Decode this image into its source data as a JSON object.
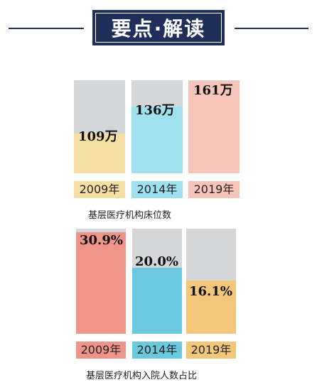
{
  "header": {
    "title": "要点·解读"
  },
  "colors": {
    "navy": "#1f2f5a",
    "gray": "#d4d6d8",
    "yellow": "#f6dfa2",
    "cyan": "#9fe1ef",
    "pink": "#f7c4b9",
    "salmon": "#ef9489",
    "blue": "#6cc8de",
    "orange": "#f2c77c"
  },
  "chart_data": [
    {
      "type": "bar",
      "title": "基层医疗机构床位数",
      "categories": [
        "2009年",
        "2014年",
        "2019年"
      ],
      "values": [
        109,
        136,
        161
      ],
      "value_labels": [
        "109万",
        "136万",
        "161万"
      ],
      "unit": "万"
    },
    {
      "type": "bar",
      "title": "基层医疗机构入院人数占比",
      "categories": [
        "2009年",
        "2014年",
        "2019年"
      ],
      "values": [
        30.9,
        20.0,
        16.1
      ],
      "value_labels": [
        "30.9%",
        "20.0%",
        "16.1%"
      ],
      "unit": "%"
    }
  ]
}
